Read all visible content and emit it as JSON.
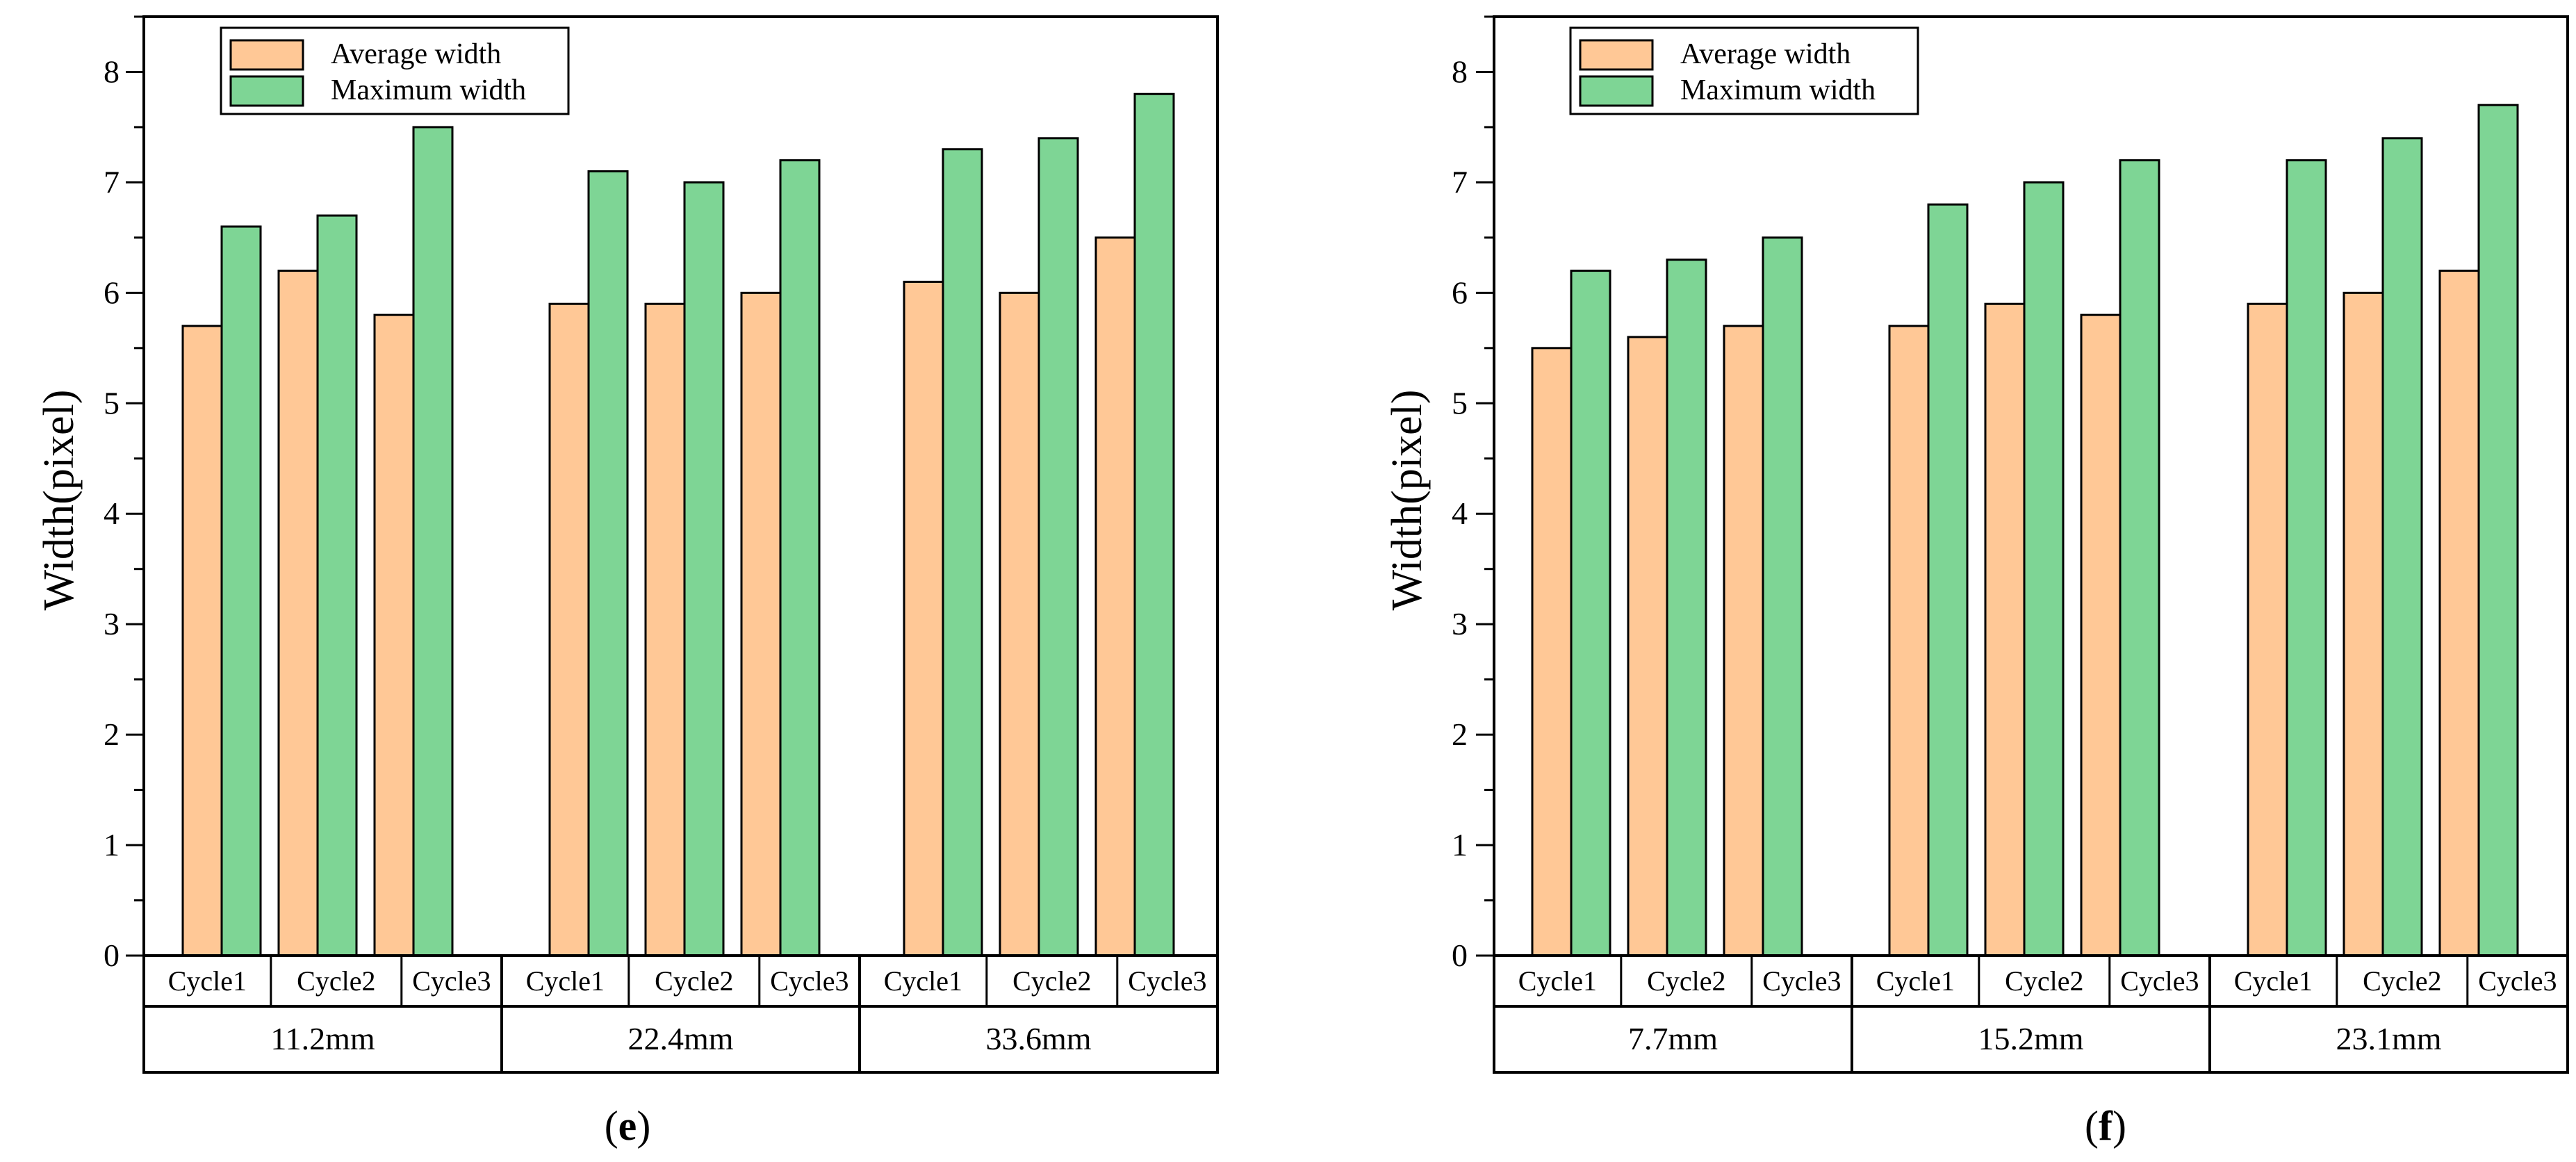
{
  "colors": {
    "average": "#FFC896",
    "maximum": "#7ED595",
    "axis": "#000000",
    "background": "#FFFFFF"
  },
  "chart_data": [
    {
      "type": "bar",
      "panel_label": "(e)",
      "panel_letter": "e",
      "ylabel": "Width(pixel)",
      "xlabel": "",
      "ylim": [
        0,
        8.5
      ],
      "yticks": [
        "0",
        "1",
        "2",
        "3",
        "4",
        "5",
        "6",
        "7",
        "8"
      ],
      "legend": {
        "entries": [
          "Average width",
          "Maximum width"
        ],
        "placement": "top-left"
      },
      "groups": [
        {
          "label": "11.2mm",
          "categories": [
            "Cycle1",
            "Cycle2",
            "Cycle3"
          ],
          "average": [
            5.7,
            6.2,
            5.8
          ],
          "maximum": [
            6.6,
            6.7,
            7.5
          ]
        },
        {
          "label": "22.4mm",
          "categories": [
            "Cycle1",
            "Cycle2",
            "Cycle3"
          ],
          "average": [
            5.9,
            5.9,
            6.0
          ],
          "maximum": [
            7.1,
            7.0,
            7.2
          ]
        },
        {
          "label": "33.6mm",
          "categories": [
            "Cycle1",
            "Cycle2",
            "Cycle3"
          ],
          "average": [
            6.1,
            6.0,
            6.5
          ],
          "maximum": [
            7.3,
            7.4,
            7.8
          ]
        }
      ]
    },
    {
      "type": "bar",
      "panel_label": "(f)",
      "panel_letter": "f",
      "ylabel": "Width(pixel)",
      "xlabel": "",
      "ylim": [
        0,
        8.5
      ],
      "yticks": [
        "0",
        "1",
        "2",
        "3",
        "4",
        "5",
        "6",
        "7",
        "8"
      ],
      "legend": {
        "entries": [
          "Average width",
          "Maximum width"
        ],
        "placement": "top-left"
      },
      "groups": [
        {
          "label": "7.7mm",
          "categories": [
            "Cycle1",
            "Cycle2",
            "Cycle3"
          ],
          "average": [
            5.5,
            5.6,
            5.7
          ],
          "maximum": [
            6.2,
            6.3,
            6.5
          ]
        },
        {
          "label": "15.2mm",
          "categories": [
            "Cycle1",
            "Cycle2",
            "Cycle3"
          ],
          "average": [
            5.7,
            5.9,
            5.8
          ],
          "maximum": [
            6.8,
            7.0,
            7.2
          ]
        },
        {
          "label": "23.1mm",
          "categories": [
            "Cycle1",
            "Cycle2",
            "Cycle3"
          ],
          "average": [
            5.9,
            6.0,
            6.2
          ],
          "maximum": [
            7.2,
            7.4,
            7.7
          ]
        }
      ]
    }
  ]
}
